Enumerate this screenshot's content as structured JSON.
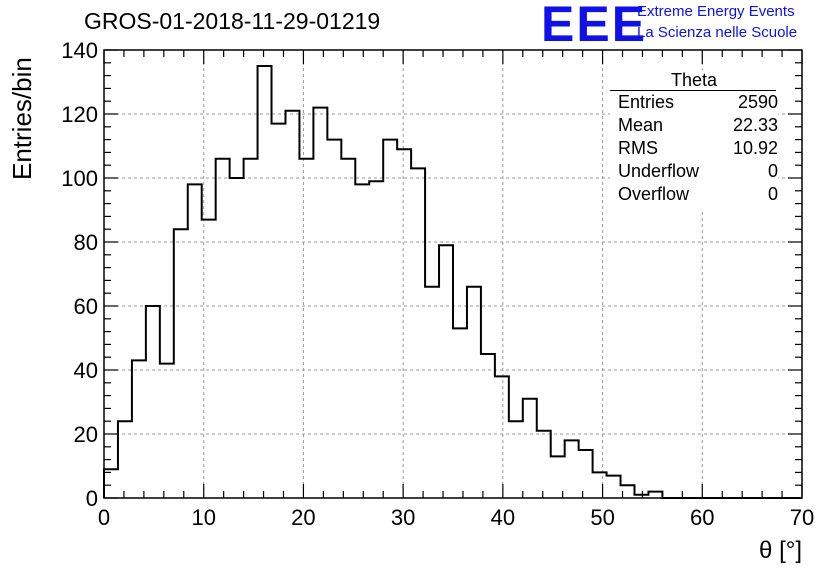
{
  "title": "GROS-01-2018-11-29-01219",
  "logo": {
    "mark": "EEE",
    "line1": "Extreme Energy Events",
    "line2": "La Scienza nelle Scuole",
    "color": "#1010e8"
  },
  "stats_box": {
    "title": "Theta",
    "rows": [
      {
        "key": "Entries",
        "value": "2590"
      },
      {
        "key": "Mean",
        "value": "22.33"
      },
      {
        "key": "RMS",
        "value": "10.92"
      },
      {
        "key": "Underflow",
        "value": "0"
      },
      {
        "key": "Overflow",
        "value": "0"
      }
    ]
  },
  "chart_data": {
    "type": "histogram",
    "xlabel": "θ [°]",
    "ylabel": "Entries/bin",
    "xlim": [
      0,
      70
    ],
    "ylim": [
      0,
      140
    ],
    "grid": true,
    "bin_width": 1.4,
    "x_ticks": [
      0,
      10,
      20,
      30,
      40,
      50,
      60,
      70
    ],
    "y_ticks": [
      0,
      20,
      40,
      60,
      80,
      100,
      120,
      140
    ],
    "values": [
      9,
      24,
      43,
      60,
      42,
      84,
      98,
      87,
      106,
      100,
      106,
      135,
      117,
      121,
      106,
      122,
      112,
      106,
      98,
      99,
      112,
      109,
      103,
      66,
      79,
      53,
      66,
      45,
      38,
      24,
      31,
      21,
      13,
      18,
      15,
      8,
      7,
      4,
      1,
      2,
      0,
      0,
      0,
      0,
      0,
      0,
      0,
      0,
      0,
      0
    ],
    "line_color": "#000000"
  }
}
